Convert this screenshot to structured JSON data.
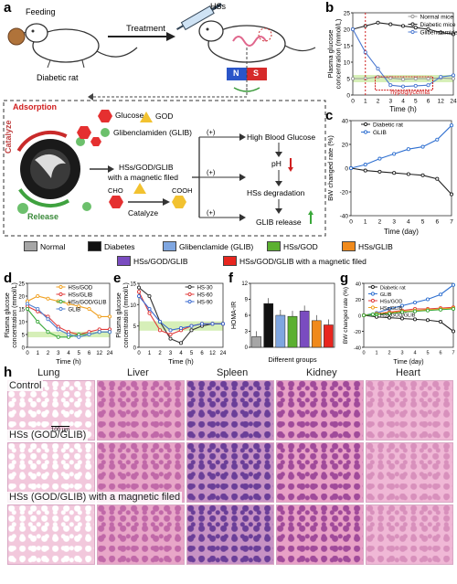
{
  "panel_labels": {
    "a": "a",
    "b": "b",
    "c": "c",
    "d": "d",
    "e": "e",
    "f": "f",
    "g": "g",
    "h": "h"
  },
  "schematic": {
    "feeding": "Feeding",
    "diabetic_rat": "Diabetic rat",
    "treatment": "Treatment",
    "hss": "HSs",
    "magnet_n": "N",
    "magnet_s": "S",
    "adsorption": "Adsorption",
    "catalyze": "Catalyze",
    "release": "Release",
    "glucose": "Glucose",
    "god": "GOD",
    "glib": "Glibenclamiden (GLIB)",
    "hss_god_glib": "HSs/GOD/GLIB",
    "with_field": "with a magnetic filed",
    "cho": "CHO",
    "cooh": "COOH",
    "catalyze2": "Catalyze",
    "plus": "(+)",
    "high_bg": "High Blood Glucose",
    "ph": "pH",
    "degradation": "HSs degradation",
    "glib_release": "GLIB release"
  },
  "legend": [
    {
      "label": "Normal",
      "color": "#a6a6a6"
    },
    {
      "label": "Diabetes",
      "color": "#111111"
    },
    {
      "label": "Glibenclamide (GLIB)",
      "color": "#7fa6e0"
    },
    {
      "label": "HSs/GOD",
      "color": "#5bb030"
    },
    {
      "label": "HSs/GLIB",
      "color": "#f08a1c"
    },
    {
      "label": "HSs/GOD/GLIB",
      "color": "#7a4cc0"
    },
    {
      "label": "HSs/GOD/GLIB with a magnetic filed",
      "color": "#e8261f"
    }
  ],
  "chart_data": [
    {
      "id": "b",
      "type": "line",
      "ylabel": "Plasma glucose\nconcentration (mmol/L)",
      "xlabel": "Time (h)",
      "xticks": [
        "0",
        "1",
        "2",
        "3",
        "4",
        "5",
        "6",
        "12",
        "24"
      ],
      "ylim": [
        0,
        25
      ],
      "yticks": [
        0,
        5,
        10,
        15,
        20,
        25
      ],
      "annotation": "hypoglycemia",
      "series": [
        {
          "name": "Normal mice",
          "color": "#999999",
          "values": [
            5,
            5,
            5.5,
            5.2,
            4.8,
            5,
            5,
            5.2,
            5
          ]
        },
        {
          "name": "Diabetic mice",
          "color": "#222222",
          "values": [
            20,
            21,
            22,
            21.5,
            21,
            20.5,
            20,
            19,
            18.5
          ]
        },
        {
          "name": "Glibenclamide",
          "color": "#4a78d0",
          "values": [
            20,
            13,
            8,
            3,
            2.6,
            2.8,
            3,
            5.5,
            6
          ]
        }
      ]
    },
    {
      "id": "c",
      "type": "line",
      "ylabel": "BW changed rate (%)",
      "xlabel": "Time (day)",
      "xticks": [
        "0",
        "1",
        "2",
        "3",
        "4",
        "5",
        "6",
        "7"
      ],
      "ylim": [
        -40,
        40
      ],
      "yticks": [
        -40,
        -20,
        0,
        20,
        40
      ],
      "series": [
        {
          "name": "Diabetic rat",
          "color": "#222222",
          "values": [
            0,
            -2,
            -3,
            -4,
            -5,
            -6,
            -9,
            -22
          ]
        },
        {
          "name": "GLIB",
          "color": "#2e6fd0",
          "values": [
            0,
            3,
            8,
            12,
            16,
            18,
            24,
            36
          ]
        }
      ]
    },
    {
      "id": "d",
      "type": "line",
      "ylabel": "Plasma glucose\nconcentration (mmol/L)",
      "xlabel": "Time (h)",
      "xticks": [
        "0",
        "1",
        "2",
        "3",
        "4",
        "5",
        "6",
        "12",
        "24"
      ],
      "ylim": [
        0,
        25
      ],
      "yticks": [
        0,
        5,
        10,
        15,
        20,
        25
      ],
      "series": [
        {
          "name": "HSs/GOD",
          "color": "#f0a020",
          "values": [
            18,
            20,
            19,
            18,
            17,
            16,
            15,
            12,
            12
          ]
        },
        {
          "name": "HSs/GLIB",
          "color": "#e03a3a",
          "values": [
            16,
            14,
            12,
            8,
            6,
            5,
            6,
            7,
            7
          ]
        },
        {
          "name": "HSs/GOD/GLIB",
          "color": "#3aa83a",
          "values": [
            15,
            10,
            6,
            4,
            4,
            5,
            5,
            6,
            6
          ]
        },
        {
          "name": "GLIB",
          "color": "#5080d0",
          "values": [
            17,
            15,
            11,
            7,
            5,
            4,
            5,
            6,
            6
          ]
        }
      ]
    },
    {
      "id": "e",
      "type": "line",
      "ylabel": "Plasma glucose\nconcentration (mmol/L)",
      "xlabel": "Time (h)",
      "xticks": [
        "0",
        "1",
        "2",
        "3",
        "4",
        "5",
        "6",
        "12",
        "24"
      ],
      "ylim": [
        0,
        15
      ],
      "yticks": [
        0,
        5,
        10,
        15
      ],
      "series": [
        {
          "name": "HS-30",
          "color": "#333333",
          "values": [
            14,
            12,
            6,
            2,
            1,
            4,
            5,
            5.5,
            5.5
          ]
        },
        {
          "name": "HS-60",
          "color": "#e03a3a",
          "values": [
            13,
            8,
            4,
            3,
            4,
            5,
            5.5,
            5.5,
            5.5
          ]
        },
        {
          "name": "HS-90",
          "color": "#3a6ad0",
          "values": [
            12,
            9,
            6,
            4,
            4.5,
            5,
            5.5,
            5.5,
            5.5
          ]
        }
      ]
    },
    {
      "id": "f",
      "type": "bar",
      "ylabel": "HOMA-IR",
      "xlabel": "Different groups",
      "ylim": [
        0,
        12
      ],
      "yticks": [
        0,
        3,
        6,
        9,
        12
      ],
      "categories": [
        "Normal",
        "Diabetes",
        "GLIB",
        "HSs/GOD",
        "HSs/GLIB",
        "HSs/GOD/GLIB",
        "HSs/GOD/GLIB with a magnetic filed"
      ],
      "values": [
        2,
        8.2,
        6,
        5.8,
        6.8,
        5,
        4.2
      ],
      "colors": [
        "#a6a6a6",
        "#111111",
        "#7fa6e0",
        "#5bb030",
        "#7a4cc0",
        "#f08a1c",
        "#e8261f"
      ]
    },
    {
      "id": "g",
      "type": "line",
      "ylabel": "BW changed rate (%)",
      "xlabel": "Time (day)",
      "xticks": [
        "0",
        "1",
        "2",
        "3",
        "4",
        "5",
        "6",
        "7"
      ],
      "ylim": [
        -40,
        40
      ],
      "yticks": [
        -40,
        -20,
        0,
        20,
        40
      ],
      "series": [
        {
          "name": "Diabetic rat",
          "color": "#222222",
          "values": [
            0,
            -2,
            -3,
            -4,
            -5,
            -6,
            -8,
            -20
          ]
        },
        {
          "name": "GLIB",
          "color": "#2e6fd0",
          "values": [
            0,
            3,
            8,
            12,
            16,
            20,
            26,
            38
          ]
        },
        {
          "name": "HSs/GOD",
          "color": "#e03a3a",
          "values": [
            0,
            2,
            4,
            6,
            8,
            8,
            9,
            10
          ]
        },
        {
          "name": "HSs/GLIB",
          "color": "#f0a020",
          "values": [
            0,
            2,
            3,
            5,
            6,
            7,
            8,
            9
          ]
        },
        {
          "name": "HSs/GOD/GLIB",
          "color": "#3aa83a",
          "values": [
            0,
            1,
            2,
            4,
            5,
            6,
            7,
            8
          ]
        }
      ]
    }
  ],
  "histology": {
    "organs": [
      "Lung",
      "Liver",
      "Spleen",
      "Kidney",
      "Heart"
    ],
    "rows": [
      "Control",
      "HSs (GOD/GLIB)",
      "HSs (GOD/GLIB) with a magnetic filed"
    ],
    "scale": "100 μm"
  }
}
